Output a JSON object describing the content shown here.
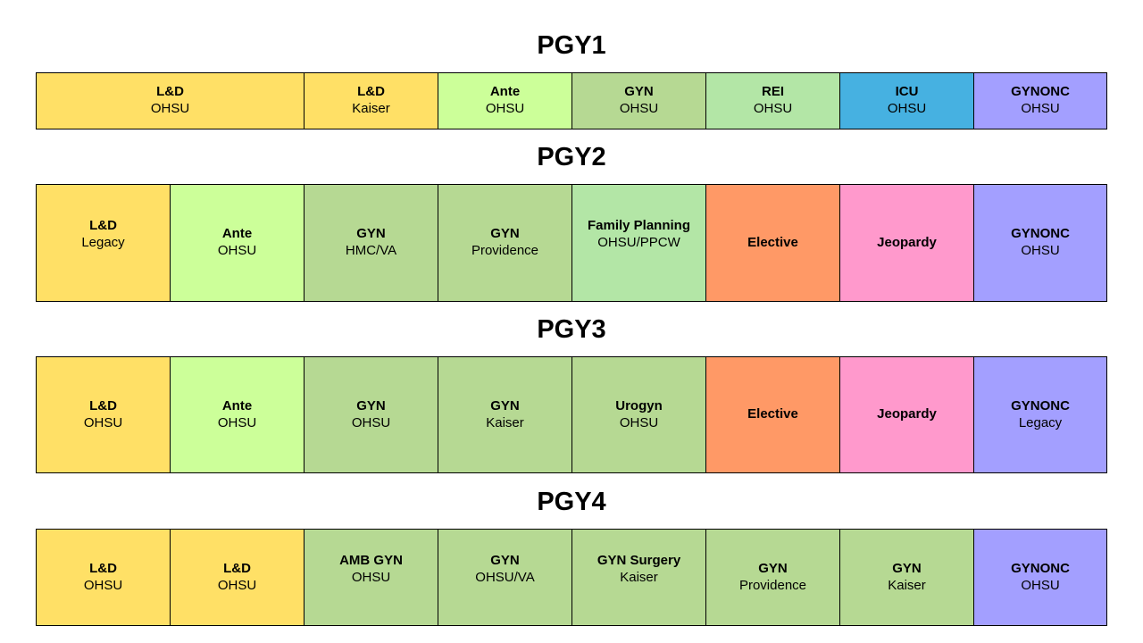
{
  "years": [
    {
      "title": "PGY1",
      "rotations": [
        {
          "name": "L&D",
          "site": "OHSU"
        },
        {
          "name": "L&D",
          "site": "Kaiser"
        },
        {
          "name": "Ante",
          "site": "OHSU"
        },
        {
          "name": "GYN",
          "site": "OHSU"
        },
        {
          "name": "REI",
          "site": "OHSU"
        },
        {
          "name": "ICU",
          "site": "OHSU"
        },
        {
          "name": "GYNONC",
          "site": "OHSU"
        }
      ]
    },
    {
      "title": "PGY2",
      "rotations": [
        {
          "name": "L&D",
          "site": "Legacy"
        },
        {
          "name": "Ante",
          "site": "OHSU"
        },
        {
          "name": "GYN",
          "site": "HMC/VA"
        },
        {
          "name": "GYN",
          "site": "Providence"
        },
        {
          "name": "Family Planning",
          "site": "OHSU/PPCW"
        },
        {
          "name": "Elective",
          "site": ""
        },
        {
          "name": "Jeopardy",
          "site": ""
        },
        {
          "name": "GYNONC",
          "site": "OHSU"
        }
      ]
    },
    {
      "title": "PGY3",
      "rotations": [
        {
          "name": "L&D",
          "site": "OHSU"
        },
        {
          "name": "Ante",
          "site": "OHSU"
        },
        {
          "name": "GYN",
          "site": "OHSU"
        },
        {
          "name": "GYN",
          "site": "Kaiser"
        },
        {
          "name": "Urogyn",
          "site": "OHSU"
        },
        {
          "name": "Elective",
          "site": ""
        },
        {
          "name": "Jeopardy",
          "site": ""
        },
        {
          "name": "GYNONC",
          "site": "Legacy"
        }
      ]
    },
    {
      "title": "PGY4",
      "rotations": [
        {
          "name": "L&D",
          "site": "OHSU"
        },
        {
          "name": "L&D",
          "site": "OHSU"
        },
        {
          "name": "AMB GYN",
          "site": "OHSU"
        },
        {
          "name": "GYN",
          "site": "OHSU/VA"
        },
        {
          "name": "GYN Surgery",
          "site": "Kaiser"
        },
        {
          "name": "GYN",
          "site": "Providence"
        },
        {
          "name": "GYN",
          "site": "Kaiser"
        },
        {
          "name": "GYNONC",
          "site": "OHSU"
        }
      ]
    }
  ],
  "colors": {
    "labor_and_delivery": "#ffe066",
    "antepartum": "#ccff99",
    "gynecology": "#b6d993",
    "rei": "#b3e6a6",
    "icu": "#46b1e1",
    "gyn_oncology": "#a39fff",
    "elective": "#ff9966",
    "jeopardy": "#ff99cc"
  }
}
